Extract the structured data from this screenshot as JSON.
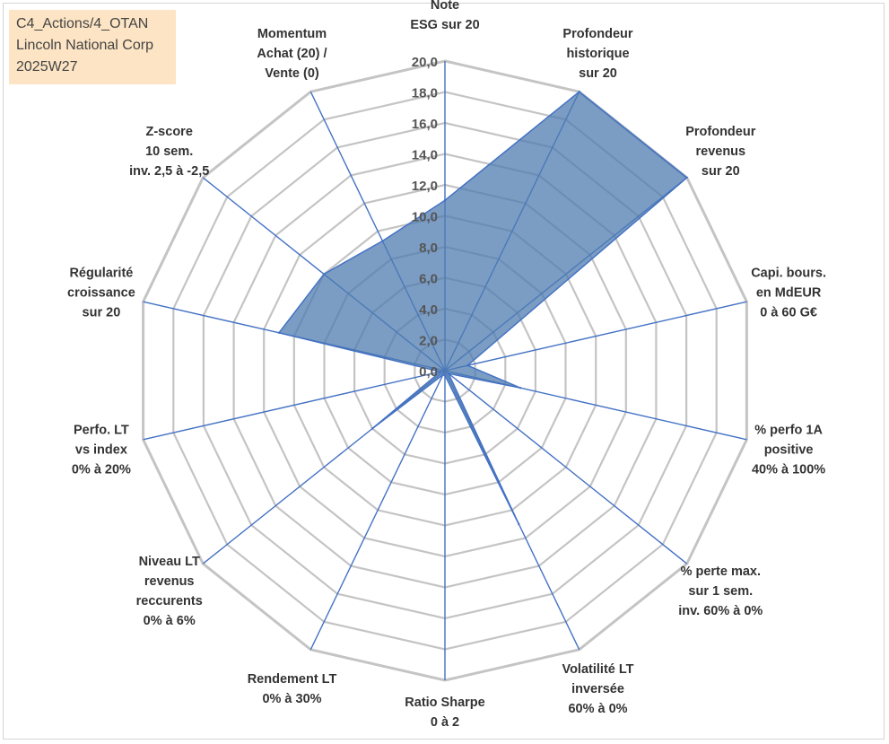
{
  "info_box": {
    "line1": "C4_Actions/4_OTAN",
    "line2": "Lincoln National Corp",
    "line3": "2025W27"
  },
  "chart_data": {
    "type": "radar",
    "rmin": 0,
    "rmax": 20,
    "ticks": [
      "0,0",
      "2,0",
      "4,0",
      "6,0",
      "8,0",
      "10,0",
      "12,0",
      "14,0",
      "16,0",
      "18,0",
      "20,0"
    ],
    "categories": [
      [
        "Note",
        "ESG sur 20"
      ],
      [
        "Profondeur",
        "historique",
        "sur 20"
      ],
      [
        "Profondeur",
        "revenus",
        "sur 20"
      ],
      [
        "Capi. bours.",
        "en MdEUR",
        "0 à 60 G€"
      ],
      [
        "% perfo 1A",
        "positive",
        "40% à 100%"
      ],
      [
        "% perte max.",
        "sur 1 sem.",
        "inv. 60% à 0%"
      ],
      [
        "Volatilité LT",
        "inversée",
        "60% à 0%"
      ],
      [
        "Ratio Sharpe",
        "0 à 2"
      ],
      [
        "Rendement LT",
        "0% à 30%"
      ],
      [
        "Niveau LT",
        "revenus",
        "reccurents",
        "0% à 6%"
      ],
      [
        "Perfo. LT",
        "vs index",
        "0% à 20%"
      ],
      [
        "Régularité",
        "croissance",
        "sur 20"
      ],
      [
        "Z-score",
        "10 sem.",
        "inv. 2,5 à -2,5"
      ],
      [
        "Momentum",
        "Achat (20) /",
        "Vente (0)"
      ]
    ],
    "values": [
      11,
      20,
      20,
      1.5,
      5,
      0.3,
      11,
      0.3,
      0.3,
      6,
      0.3,
      11,
      10,
      9.3
    ],
    "grid": true,
    "series_color": "#4f7cb0",
    "spoke_color": "#4472c4",
    "grid_color": "#c4c4c4"
  }
}
